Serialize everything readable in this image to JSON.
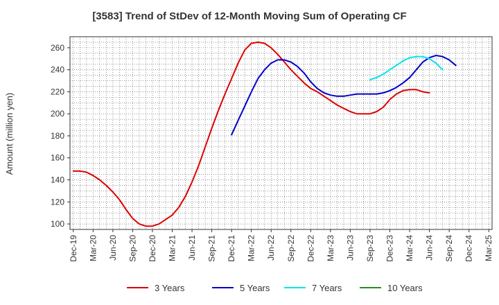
{
  "chart_data": {
    "type": "line",
    "title": "[3583]  Trend of StDev of 12-Month Moving Sum of Operating CF",
    "xlabel": "",
    "ylabel": "Amount (million yen)",
    "ylim": [
      95,
      270
    ],
    "yticks": [
      100,
      120,
      140,
      160,
      180,
      200,
      220,
      240,
      260
    ],
    "grid": true,
    "legend_position": "bottom",
    "x_tick_labels": [
      "Dec-19",
      "Mar-20",
      "Jun-20",
      "Sep-20",
      "Dec-20",
      "Mar-21",
      "Jun-21",
      "Sep-21",
      "Dec-21",
      "Mar-22",
      "Jun-22",
      "Sep-22",
      "Dec-22",
      "Mar-23",
      "Jun-23",
      "Sep-23",
      "Dec-23",
      "Mar-24",
      "Jun-24",
      "Sep-24",
      "Dec-24",
      "Mar-25"
    ],
    "series": [
      {
        "name": "3 Years",
        "color": "#dd0000",
        "start_index": 0,
        "values": [
          148,
          148,
          147,
          144,
          140,
          135,
          129,
          122,
          113,
          105,
          100,
          98,
          98,
          100,
          104,
          108,
          115,
          125,
          138,
          153,
          170,
          187,
          203,
          218,
          232,
          246,
          258,
          264,
          265,
          264,
          260,
          254,
          247,
          240,
          234,
          228,
          223,
          220,
          216,
          212,
          208,
          205,
          202,
          200,
          200,
          200,
          202,
          206,
          213,
          218,
          221,
          222,
          222,
          220,
          219
        ]
      },
      {
        "name": "5 Years",
        "color": "#0000cc",
        "start_index": 24,
        "values": [
          181,
          194,
          207,
          220,
          232,
          240,
          246,
          249,
          249,
          247,
          243,
          237,
          229,
          223,
          219,
          217,
          216,
          216,
          217,
          218,
          218,
          218,
          218,
          219,
          221,
          224,
          228,
          233,
          240,
          247,
          251,
          253,
          252,
          249,
          244
        ]
      },
      {
        "name": "7 Years",
        "color": "#00e5ee",
        "start_index": 45,
        "values": [
          231,
          233,
          236,
          240,
          244,
          248,
          251,
          252,
          252,
          250,
          246,
          240
        ]
      },
      {
        "name": "10 Years",
        "color": "#228b22",
        "start_index": 0,
        "values": []
      }
    ]
  }
}
